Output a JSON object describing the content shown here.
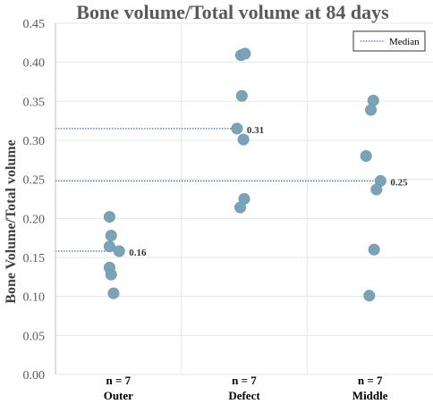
{
  "chart_data": {
    "type": "scatter",
    "title": "Bone volume/Total volume at 84 days",
    "xlabel": "",
    "ylabel": "Bone Volume/Total volume",
    "ylim": [
      0,
      0.45
    ],
    "yticks": [
      "0.00",
      "0.05",
      "0.10",
      "0.15",
      "0.20",
      "0.25",
      "0.30",
      "0.35",
      "0.40",
      "0.45"
    ],
    "grid": true,
    "legend": {
      "placement": "top-right",
      "entries": [
        "Median"
      ]
    },
    "marker_color": "#7ba3b8",
    "median_color": "#1f4e79",
    "groups": [
      {
        "label": "Outer",
        "n_label": "n = 7",
        "median": 0.158,
        "median_label": "0.16",
        "points": [
          {
            "jitter": -0.55,
            "y": 0.202
          },
          {
            "jitter": -0.45,
            "y": 0.178
          },
          {
            "jitter": -0.55,
            "y": 0.164
          },
          {
            "jitter": 0.05,
            "y": 0.158
          },
          {
            "jitter": -0.55,
            "y": 0.137
          },
          {
            "jitter": -0.45,
            "y": 0.128
          },
          {
            "jitter": -0.3,
            "y": 0.104
          }
        ]
      },
      {
        "label": "Defect",
        "n_label": "n = 7",
        "median": 0.315,
        "median_label": "0.31",
        "points": [
          {
            "jitter": -0.2,
            "y": 0.409
          },
          {
            "jitter": 0.05,
            "y": 0.411
          },
          {
            "jitter": -0.15,
            "y": 0.357
          },
          {
            "jitter": -0.45,
            "y": 0.315
          },
          {
            "jitter": -0.05,
            "y": 0.301
          },
          {
            "jitter": 0.0,
            "y": 0.225
          },
          {
            "jitter": -0.25,
            "y": 0.214
          }
        ]
      },
      {
        "label": "Middle",
        "n_label": "n = 7",
        "median": 0.248,
        "median_label": "0.25",
        "points": [
          {
            "jitter": 0.2,
            "y": 0.351
          },
          {
            "jitter": 0.05,
            "y": 0.339
          },
          {
            "jitter": -0.25,
            "y": 0.28
          },
          {
            "jitter": 0.65,
            "y": 0.248
          },
          {
            "jitter": 0.4,
            "y": 0.237
          },
          {
            "jitter": 0.25,
            "y": 0.16
          },
          {
            "jitter": -0.05,
            "y": 0.101
          }
        ]
      }
    ]
  }
}
